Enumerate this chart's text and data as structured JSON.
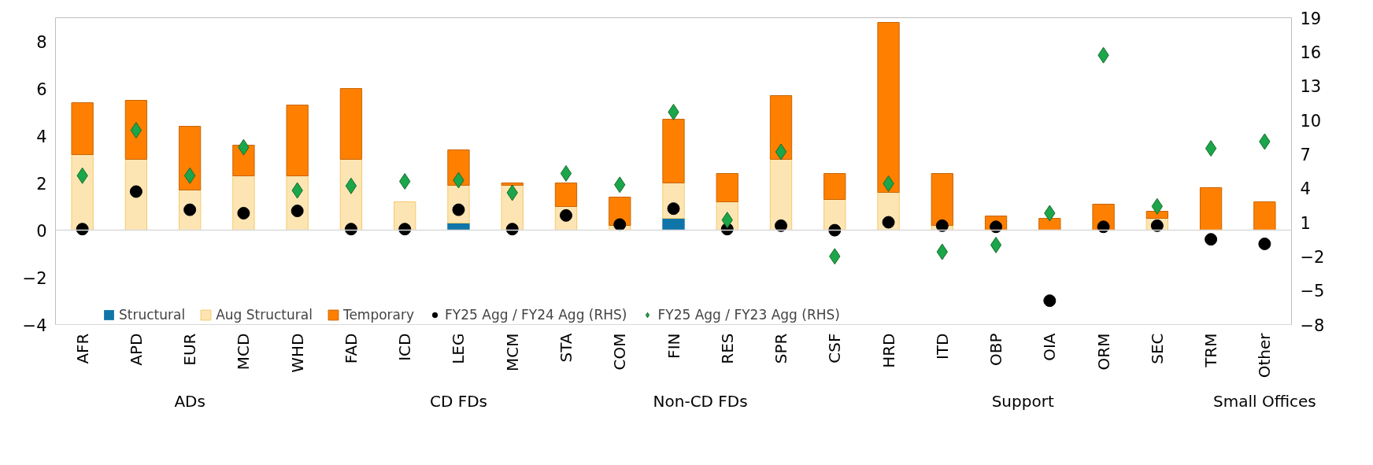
{
  "chart_data": {
    "type": "bar",
    "stacked": true,
    "categories": [
      "AFR",
      "APD",
      "EUR",
      "MCD",
      "WHD",
      "FAD",
      "ICD",
      "LEG",
      "MCM",
      "STA",
      "COM",
      "FIN",
      "RES",
      "SPR",
      "CSF",
      "HRD",
      "ITD",
      "OBP",
      "OIA",
      "ORM",
      "SEC",
      "TRM",
      "Other"
    ],
    "series": [
      {
        "name": "Structural",
        "color": "#0f75a8",
        "values": [
          0,
          0,
          0,
          0,
          0,
          0,
          0,
          0.3,
          0,
          0,
          0,
          0.5,
          0,
          0,
          0,
          0,
          0,
          0,
          0,
          0,
          0,
          0,
          0
        ]
      },
      {
        "name": "Aug Structural",
        "color": "#fde5b3",
        "values": [
          3.2,
          3.0,
          1.7,
          2.3,
          2.3,
          3.0,
          1.2,
          1.6,
          1.9,
          1.0,
          0.2,
          1.5,
          1.2,
          3.0,
          1.3,
          1.6,
          0.2,
          0,
          0,
          0,
          0.5,
          0,
          0
        ]
      },
      {
        "name": "Temporary",
        "color": "#ff8000",
        "values": [
          2.2,
          2.5,
          2.7,
          1.3,
          3.0,
          3.0,
          0,
          1.5,
          0.1,
          1.0,
          1.2,
          2.7,
          1.2,
          2.7,
          1.1,
          7.2,
          2.2,
          0.6,
          0.5,
          1.1,
          0.3,
          1.8,
          1.2
        ]
      },
      {
        "name": "FY25 Agg / FY24 Agg (RHS)",
        "type": "scatter",
        "axis": "y2",
        "marker": "circle",
        "color": "#000000",
        "values": [
          0.4,
          3.7,
          2.1,
          1.8,
          2.0,
          0.4,
          0.4,
          2.1,
          0.4,
          1.6,
          0.8,
          2.2,
          0.4,
          0.7,
          0.3,
          1.0,
          0.7,
          0.6,
          -5.9,
          0.6,
          0.7,
          -0.5,
          -0.9
        ]
      },
      {
        "name": "FY25 Agg / FY23 Agg (RHS)",
        "type": "scatter",
        "axis": "y2",
        "marker": "diamond",
        "color": "#1aa64a",
        "values": [
          5.1,
          9.1,
          5.1,
          7.6,
          3.8,
          4.2,
          4.6,
          4.7,
          3.6,
          5.3,
          4.3,
          10.7,
          1.2,
          7.2,
          -2.0,
          4.4,
          -1.6,
          -1.0,
          1.8,
          15.7,
          2.4,
          7.5,
          8.1
        ]
      }
    ],
    "ylim": [
      -4,
      9
    ],
    "yticks": [
      -4,
      -2,
      0,
      2,
      4,
      6,
      8
    ],
    "y2lim": [
      -8,
      19
    ],
    "y2ticks": [
      -8,
      -5,
      -2,
      1,
      4,
      7,
      10,
      13,
      16,
      19
    ],
    "ref_lines": [
      {
        "axis": "y",
        "value": 0,
        "color": "#d9d9d9"
      }
    ],
    "annotations": [
      "ADs",
      "CD FDs",
      "Non-CD FDs",
      "Support",
      "Small Offices"
    ],
    "grid": false,
    "legend": "bottom"
  }
}
